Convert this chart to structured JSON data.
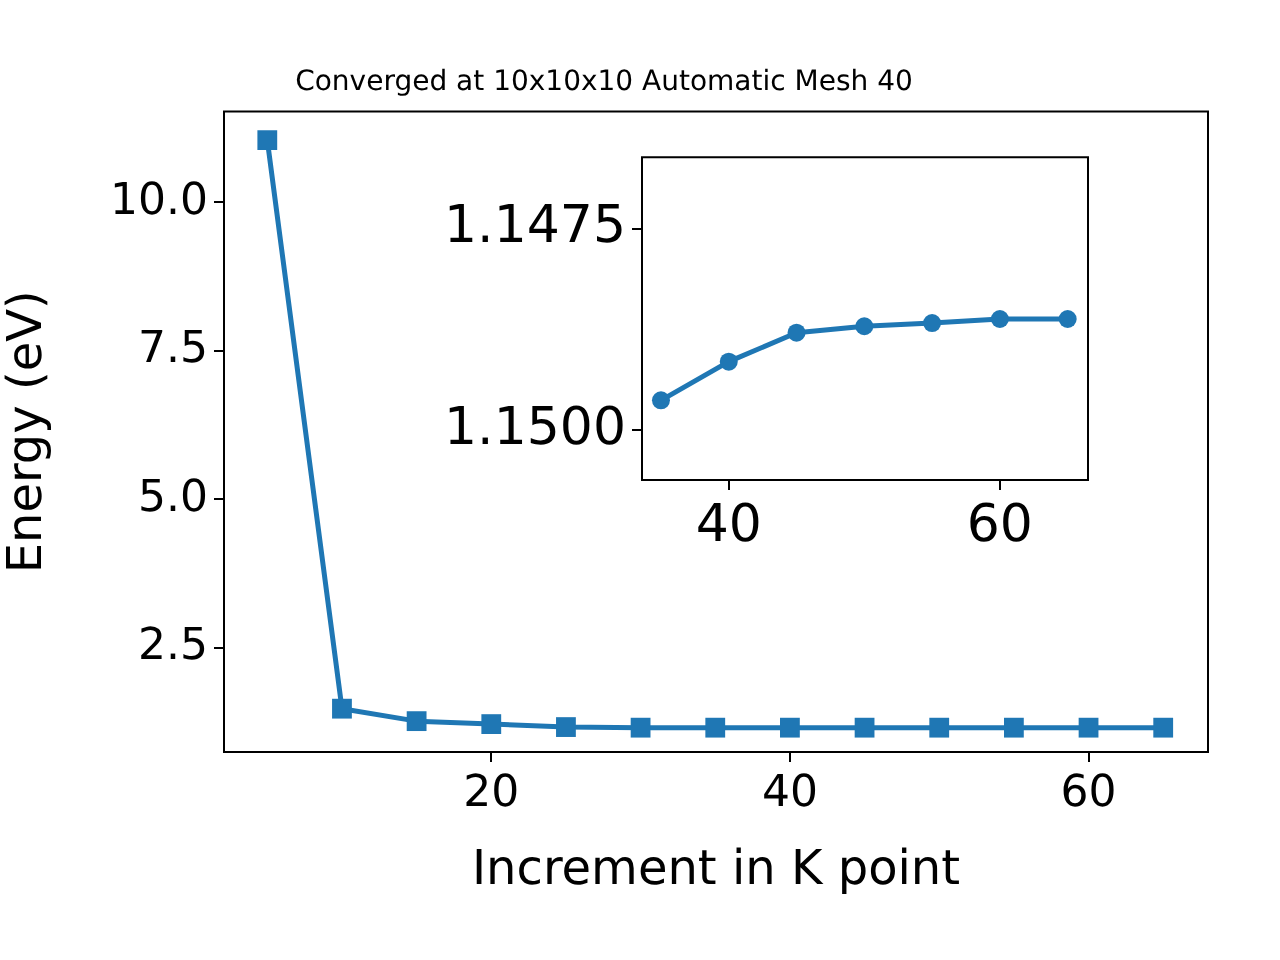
{
  "chart_data": [
    {
      "type": "line",
      "title": "Converged at 10x10x10 Automatic Mesh 40",
      "xlabel": "Increment in K point",
      "ylabel": "Energy (eV)",
      "x": [
        5,
        10,
        15,
        20,
        25,
        30,
        35,
        40,
        45,
        50,
        55,
        60,
        65
      ],
      "series": [
        {
          "color": "#1f77b4",
          "values": [
            11.05,
            1.47,
            1.26,
            1.21,
            1.16,
            1.15,
            1.15,
            1.15,
            1.15,
            1.15,
            1.15,
            1.15,
            1.15
          ]
        }
      ],
      "xlim": [
        2.1,
        68
      ],
      "xticks": [
        20,
        40,
        60
      ],
      "ylim": [
        0.74,
        11.53
      ],
      "yticks": [
        2.5,
        {
          "value": 5,
          "label": "5.0"
        },
        7.5,
        {
          "value": 10,
          "label": "10.0"
        }
      ],
      "marker": "square",
      "grid": false,
      "legend": false
    },
    {
      "type": "line",
      "x": [
        35,
        40,
        45,
        50,
        55,
        60,
        65
      ],
      "series": [
        {
          "color": "#1f77b4",
          "values": [
            1.14963,
            1.14915,
            1.14879,
            1.14871,
            1.14867,
            1.14862,
            1.14862
          ]
        }
      ],
      "xlim": [
        33.6,
        66.5
      ],
      "xticks": [
        40,
        60
      ],
      "ylim": [
        1.15062,
        1.14661
      ],
      "yticks": [
        1.1475,
        {
          "value": 1.15,
          "label": "1.1500"
        }
      ],
      "marker": "circle",
      "grid": false,
      "legend": false
    }
  ]
}
